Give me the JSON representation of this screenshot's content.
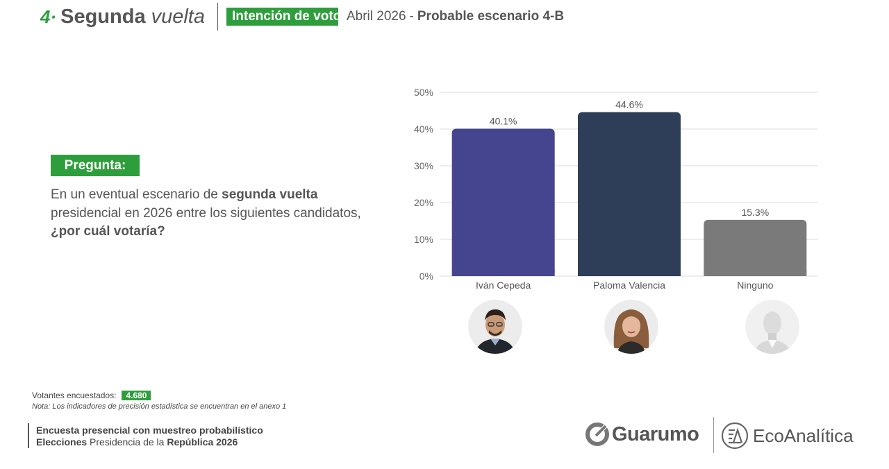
{
  "header": {
    "number": "4·",
    "title_bold": "Segunda",
    "title_italic": "vuelta",
    "badge": "Intención de voto",
    "date": "Abril  2026",
    "dash": "-",
    "scenario": "Probable escenario 4-B"
  },
  "question": {
    "label": "Pregunta:",
    "text_1": "En un eventual escenario de ",
    "text_bold_1": "segunda vuelta",
    "text_2": " presidencial en 2026 entre los siguientes candidatos, ",
    "text_bold_2": "¿por cuál votaría?"
  },
  "chart_data": {
    "type": "bar",
    "categories": [
      "Iván Cepeda",
      "Paloma Valencia",
      "Ninguno"
    ],
    "values": [
      40.1,
      44.6,
      15.3
    ],
    "data_labels": [
      "40.1%",
      "44.6%",
      "15.3%"
    ],
    "colors": [
      "#45448f",
      "#2f3e58",
      "#7a7a7a"
    ],
    "ylim": [
      0,
      50
    ],
    "yticks": [
      0,
      10,
      20,
      30,
      40,
      50
    ],
    "ytick_labels": [
      "0%",
      "10%",
      "20%",
      "30%",
      "40%",
      "50%"
    ],
    "grid": true,
    "title": "",
    "xlabel": "",
    "ylabel": ""
  },
  "avatars": [
    "person-photo-icon",
    "person-photo-icon",
    "anonymous-person-icon"
  ],
  "footer": {
    "voters_label": "Votantes encuestados:",
    "voters_count": "4.680",
    "note": "Nota: Los indicadores de precisión estadística se encuentran en el anexo 1",
    "line1": "Encuesta presencial con muestreo probabilístico",
    "line2_bold": "Elecciones",
    "line2_mid": " Presidencia de la ",
    "line2_bold2": "República 2026"
  },
  "logos": {
    "guarumo": "Guarumo",
    "ecoanalitica": "EcoAnalítica"
  }
}
